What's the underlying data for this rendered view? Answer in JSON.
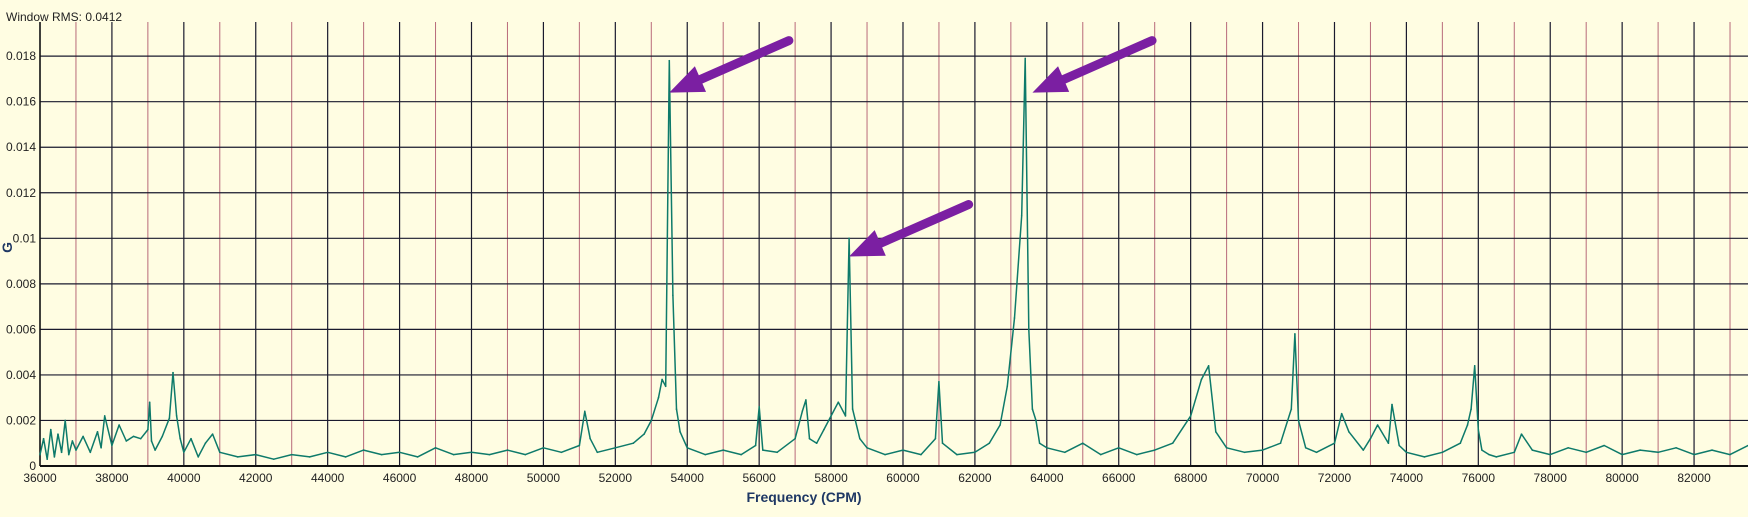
{
  "header": {
    "rms_label": "Window RMS: 0.0412"
  },
  "colors": {
    "background": "#fffde2",
    "grid_major": "#1a1a2e",
    "grid_minor": "#b86a7a",
    "line": "#0e7a6a",
    "arrow": "#7b1fa2",
    "label": "#1f3864"
  },
  "chart_data": {
    "type": "line",
    "title": "",
    "xlabel": "Frequency (CPM)",
    "ylabel": "G",
    "xlim": [
      36000,
      83500
    ],
    "ylim": [
      0,
      0.0195
    ],
    "grid": true,
    "x_ticks": [
      36000,
      38000,
      40000,
      42000,
      44000,
      46000,
      48000,
      50000,
      52000,
      54000,
      56000,
      58000,
      60000,
      62000,
      64000,
      66000,
      68000,
      70000,
      72000,
      74000,
      76000,
      78000,
      80000,
      82000
    ],
    "x_tick_labels": [
      "36000",
      "38000",
      "40000",
      "42000",
      "44000",
      "46000",
      "48000",
      "50000",
      "52000",
      "54000",
      "56000",
      "58000",
      "60000",
      "62000",
      "64000",
      "66000",
      "68000",
      "70000",
      "72000",
      "74000",
      "76000",
      "78000",
      "80000",
      "82000"
    ],
    "y_ticks": [
      0,
      0.002,
      0.004,
      0.006,
      0.008,
      0.01,
      0.012,
      0.014,
      0.016,
      0.018
    ],
    "y_tick_labels": [
      "0",
      "0.002",
      "0.004",
      "0.006",
      "0.008",
      "0.01",
      "0.012",
      "0.014",
      "0.016",
      "0.018"
    ],
    "series": [
      {
        "x": [
          36000,
          36100,
          36200,
          36300,
          36400,
          36500,
          36600,
          36700,
          36800,
          36900,
          37000,
          37200,
          37400,
          37600,
          37700,
          37800,
          38000,
          38200,
          38400,
          38600,
          38800,
          39000,
          39050,
          39100,
          39200,
          39400,
          39600,
          39700,
          39800,
          39900,
          40000,
          40200,
          40400,
          40600,
          40800,
          41000,
          41500,
          42000,
          42500,
          43000,
          43500,
          44000,
          44500,
          45000,
          45500,
          46000,
          46500,
          47000,
          47500,
          48000,
          48500,
          49000,
          49500,
          50000,
          50500,
          51000,
          51150,
          51300,
          51500,
          52000,
          52500,
          52800,
          53000,
          53200,
          53300,
          53400,
          53500,
          53600,
          53700,
          53800,
          54000,
          54500,
          55000,
          55500,
          55900,
          56000,
          56100,
          56500,
          57000,
          57200,
          57300,
          57400,
          57600,
          57800,
          58000,
          58200,
          58400,
          58500,
          58600,
          58800,
          59000,
          59500,
          60000,
          60500,
          60900,
          61000,
          61100,
          61500,
          62000,
          62400,
          62700,
          62900,
          63100,
          63300,
          63400,
          63500,
          63600,
          63700,
          63800,
          64000,
          64500,
          65000,
          65500,
          66000,
          66500,
          67000,
          67500,
          68000,
          68300,
          68500,
          68700,
          69000,
          69500,
          70000,
          70500,
          70800,
          70900,
          71000,
          71200,
          71500,
          72000,
          72200,
          72400,
          72800,
          73000,
          73200,
          73500,
          73600,
          73800,
          74000,
          74500,
          75000,
          75500,
          75700,
          75800,
          75900,
          76000,
          76100,
          76300,
          76500,
          77000,
          77200,
          77500,
          78000,
          78500,
          79000,
          79500,
          80000,
          80500,
          81000,
          81500,
          82000,
          82500,
          83000,
          83500
        ],
        "y": [
          0.0005,
          0.0012,
          0.0003,
          0.0016,
          0.0004,
          0.0014,
          0.0006,
          0.002,
          0.0005,
          0.0011,
          0.0007,
          0.0013,
          0.0006,
          0.0015,
          0.0008,
          0.0022,
          0.0009,
          0.0018,
          0.0011,
          0.0013,
          0.0012,
          0.0016,
          0.0028,
          0.0011,
          0.0007,
          0.0013,
          0.0021,
          0.0041,
          0.0022,
          0.0012,
          0.0006,
          0.0012,
          0.0004,
          0.001,
          0.0014,
          0.0006,
          0.0004,
          0.0005,
          0.0003,
          0.0005,
          0.0004,
          0.0006,
          0.0004,
          0.0007,
          0.0005,
          0.0006,
          0.0004,
          0.0008,
          0.0005,
          0.0006,
          0.0005,
          0.0007,
          0.0005,
          0.0008,
          0.0006,
          0.0009,
          0.0024,
          0.0012,
          0.0006,
          0.0008,
          0.001,
          0.0014,
          0.002,
          0.003,
          0.0038,
          0.0035,
          0.0178,
          0.0075,
          0.0025,
          0.0015,
          0.0008,
          0.0005,
          0.0007,
          0.0005,
          0.0009,
          0.0026,
          0.0007,
          0.0006,
          0.0012,
          0.0024,
          0.0029,
          0.0012,
          0.001,
          0.0016,
          0.0022,
          0.0028,
          0.0022,
          0.01,
          0.0025,
          0.0012,
          0.0008,
          0.0005,
          0.0007,
          0.0005,
          0.0012,
          0.0037,
          0.001,
          0.0005,
          0.0006,
          0.001,
          0.0018,
          0.0035,
          0.0065,
          0.011,
          0.0179,
          0.006,
          0.0025,
          0.002,
          0.001,
          0.0008,
          0.0006,
          0.001,
          0.0005,
          0.0008,
          0.0005,
          0.0007,
          0.001,
          0.0022,
          0.0038,
          0.0044,
          0.0015,
          0.0008,
          0.0006,
          0.0007,
          0.001,
          0.0025,
          0.0058,
          0.002,
          0.0008,
          0.0006,
          0.001,
          0.0023,
          0.0015,
          0.0007,
          0.0012,
          0.0018,
          0.001,
          0.0027,
          0.0009,
          0.0006,
          0.0004,
          0.0006,
          0.001,
          0.0018,
          0.0025,
          0.0044,
          0.0016,
          0.0007,
          0.0005,
          0.0004,
          0.0006,
          0.0014,
          0.0007,
          0.0005,
          0.0008,
          0.0006,
          0.0009,
          0.0005,
          0.0007,
          0.0006,
          0.0008,
          0.0005,
          0.0007,
          0.0005,
          0.0009
        ]
      }
    ],
    "annotations": [
      {
        "type": "arrow",
        "target_x": 53500,
        "target_y": 0.0164
      },
      {
        "type": "arrow",
        "target_x": 58500,
        "target_y": 0.0092
      },
      {
        "type": "arrow",
        "target_x": 63600,
        "target_y": 0.0164
      }
    ]
  }
}
